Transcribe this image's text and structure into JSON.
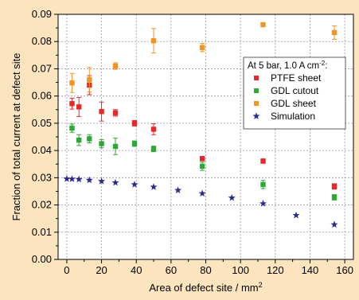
{
  "chart_data": {
    "type": "scatter",
    "xlabel": "Area of defect site / mm",
    "xlabel_sup": "2",
    "ylabel": "Fraction of total current at defect site",
    "xlim": [
      -5,
      165
    ],
    "ylim": [
      0,
      0.09
    ],
    "x_ticks": [
      0,
      20,
      40,
      60,
      80,
      100,
      120,
      140,
      160
    ],
    "y_ticks": [
      0.0,
      0.01,
      0.02,
      0.03,
      0.04,
      0.05,
      0.06,
      0.07,
      0.08,
      0.09
    ],
    "grid": true,
    "legend": {
      "placement": "right",
      "title": "At 5 bar, 1.0 A cm",
      "title_sup": "-2",
      "title_suffix": ":"
    },
    "series": [
      {
        "name": "PTFE sheet",
        "color": "#e8272a",
        "marker": "square",
        "points": [
          {
            "x": 3,
            "y": 0.0572,
            "err": 0.002
          },
          {
            "x": 7,
            "y": 0.056,
            "err": 0.0035
          },
          {
            "x": 13,
            "y": 0.064,
            "err": 0.0035
          },
          {
            "x": 20,
            "y": 0.0543,
            "err": 0.0035
          },
          {
            "x": 28,
            "y": 0.0538,
            "err": 0.0012
          },
          {
            "x": 39,
            "y": 0.05,
            "err": 0.001
          },
          {
            "x": 50,
            "y": 0.0478,
            "err": 0.002
          },
          {
            "x": 78,
            "y": 0.037,
            "err": 0.0008
          },
          {
            "x": 113,
            "y": 0.0361,
            "err": 0.0008
          },
          {
            "x": 154,
            "y": 0.0268,
            "err": 0.001
          }
        ]
      },
      {
        "name": "GDL cutout",
        "color": "#2ea836",
        "marker": "square",
        "points": [
          {
            "x": 3,
            "y": 0.0482,
            "err": 0.0015
          },
          {
            "x": 7,
            "y": 0.0438,
            "err": 0.002
          },
          {
            "x": 13,
            "y": 0.0443,
            "err": 0.0015
          },
          {
            "x": 20,
            "y": 0.0425,
            "err": 0.0015
          },
          {
            "x": 28,
            "y": 0.0415,
            "err": 0.003
          },
          {
            "x": 39,
            "y": 0.0425,
            "err": 0.001
          },
          {
            "x": 50,
            "y": 0.0406,
            "err": 0.001
          },
          {
            "x": 78,
            "y": 0.0342,
            "err": 0.0015
          },
          {
            "x": 113,
            "y": 0.0275,
            "err": 0.0015
          },
          {
            "x": 154,
            "y": 0.0228,
            "err": 0.001
          }
        ]
      },
      {
        "name": "GDL sheet",
        "color": "#f39324",
        "marker": "square",
        "points": [
          {
            "x": 3,
            "y": 0.0648,
            "err": 0.0035
          },
          {
            "x": 13,
            "y": 0.066,
            "err": 0.0045
          },
          {
            "x": 28,
            "y": 0.071,
            "err": 0.0012
          },
          {
            "x": 50,
            "y": 0.0803,
            "err": 0.0045
          },
          {
            "x": 78,
            "y": 0.0778,
            "err": 0.0015
          },
          {
            "x": 113,
            "y": 0.0862,
            "err": 0.0005
          },
          {
            "x": 154,
            "y": 0.0833,
            "err": 0.0025
          }
        ]
      },
      {
        "name": "Simulation",
        "color": "#2b2e8c",
        "marker": "star",
        "points": [
          {
            "x": 0,
            "y": 0.0296
          },
          {
            "x": 3,
            "y": 0.0295
          },
          {
            "x": 7,
            "y": 0.0294
          },
          {
            "x": 13,
            "y": 0.0291
          },
          {
            "x": 20,
            "y": 0.0287
          },
          {
            "x": 28,
            "y": 0.0282
          },
          {
            "x": 39,
            "y": 0.0275
          },
          {
            "x": 50,
            "y": 0.0266
          },
          {
            "x": 64,
            "y": 0.0254
          },
          {
            "x": 78,
            "y": 0.0242
          },
          {
            "x": 95,
            "y": 0.0226
          },
          {
            "x": 113,
            "y": 0.0205
          },
          {
            "x": 132,
            "y": 0.0162
          },
          {
            "x": 154,
            "y": 0.0128
          }
        ]
      }
    ]
  }
}
